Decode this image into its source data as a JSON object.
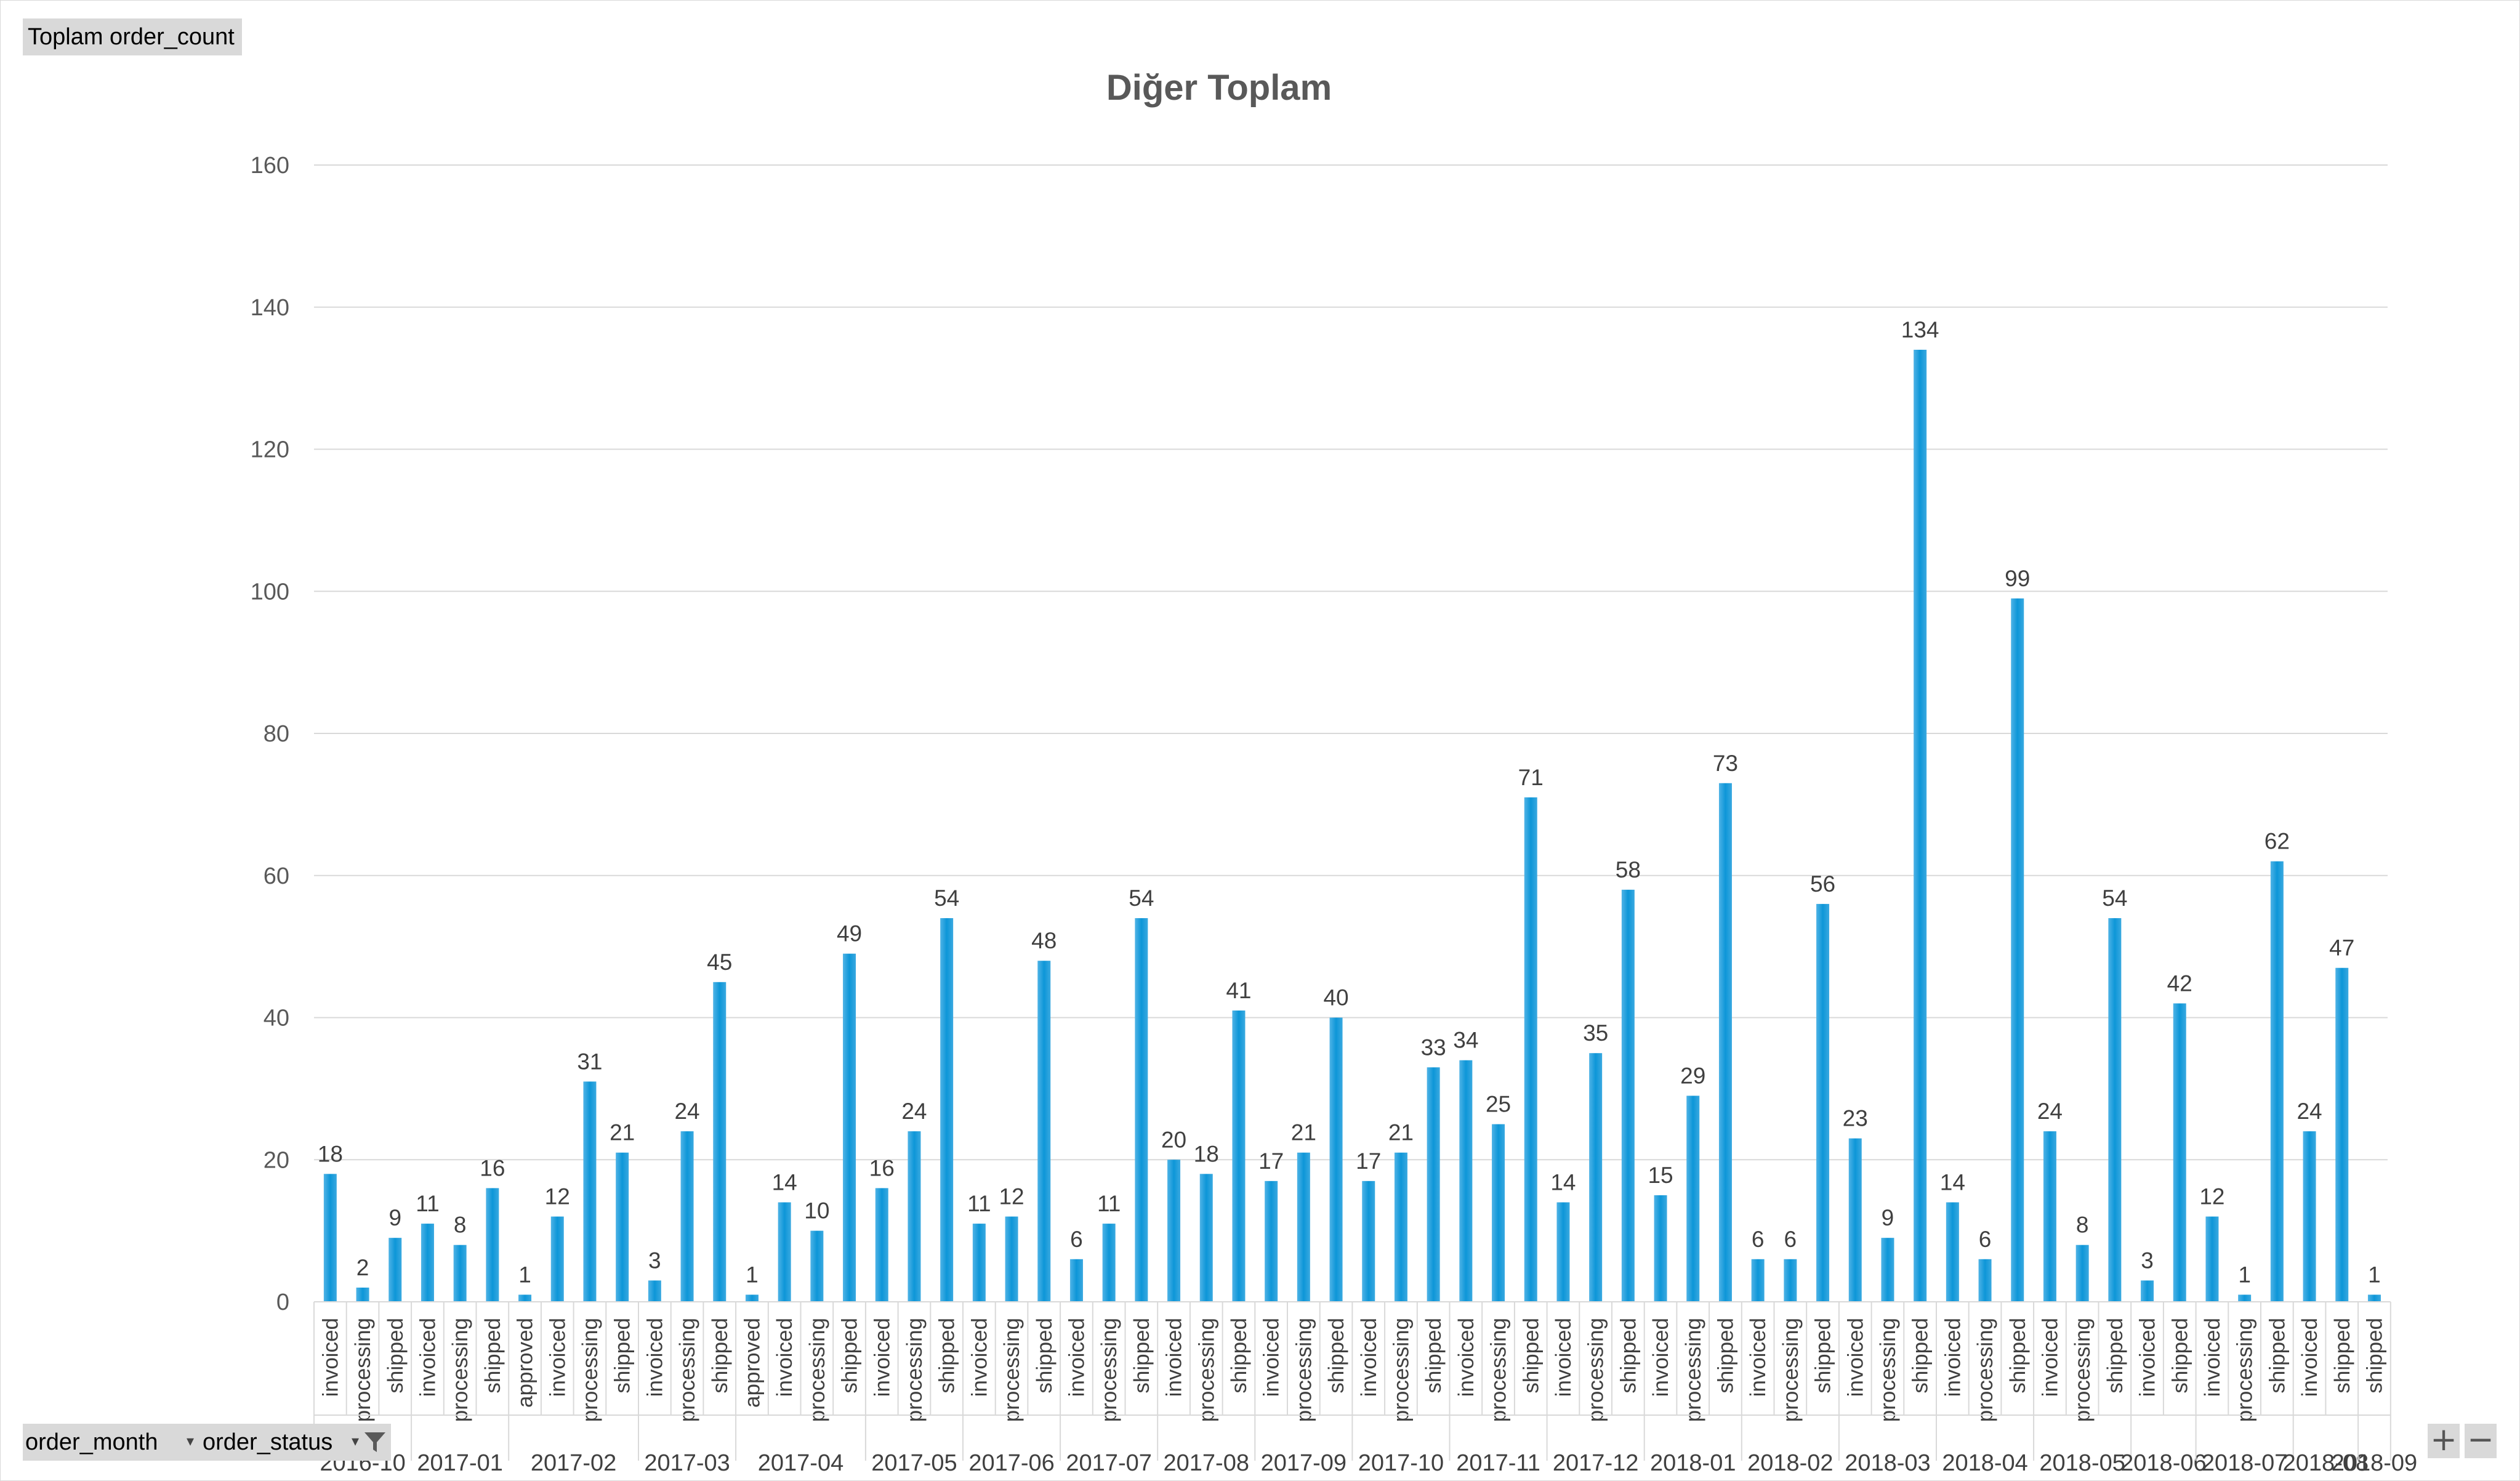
{
  "value_field": "Toplam order_count",
  "axis_fields": [
    "order_month",
    "order_status"
  ],
  "controls": {
    "zoom_in": "+",
    "zoom_out": "−",
    "filter_icon": "filter-icon",
    "dropdown_icon": "dropdown-icon"
  },
  "colors": {
    "bar": "#1b9ad6",
    "grid": "#d9d9d9",
    "field_button": "#d9d9d9"
  },
  "chart_data": {
    "type": "bar",
    "title": "Diğer Toplam",
    "ylim": [
      0,
      160
    ],
    "yticks": [
      0,
      20,
      40,
      60,
      80,
      100,
      120,
      140,
      160
    ],
    "grid": true,
    "legend": "none",
    "groups": [
      {
        "month": "2016-10",
        "items": [
          {
            "status": "invoiced",
            "value": 18
          },
          {
            "status": "processing",
            "value": 2
          },
          {
            "status": "shipped",
            "value": 9
          }
        ]
      },
      {
        "month": "2017-01",
        "items": [
          {
            "status": "invoiced",
            "value": 11
          },
          {
            "status": "processing",
            "value": 8
          },
          {
            "status": "shipped",
            "value": 16
          }
        ]
      },
      {
        "month": "2017-02",
        "items": [
          {
            "status": "approved",
            "value": 1
          },
          {
            "status": "invoiced",
            "value": 12
          },
          {
            "status": "processing",
            "value": 31
          },
          {
            "status": "shipped",
            "value": 21
          }
        ]
      },
      {
        "month": "2017-03",
        "items": [
          {
            "status": "invoiced",
            "value": 3
          },
          {
            "status": "processing",
            "value": 24
          },
          {
            "status": "shipped",
            "value": 45
          }
        ]
      },
      {
        "month": "2017-04",
        "items": [
          {
            "status": "approved",
            "value": 1
          },
          {
            "status": "invoiced",
            "value": 14
          },
          {
            "status": "processing",
            "value": 10
          },
          {
            "status": "shipped",
            "value": 49
          }
        ]
      },
      {
        "month": "2017-05",
        "items": [
          {
            "status": "invoiced",
            "value": 16
          },
          {
            "status": "processing",
            "value": 24
          },
          {
            "status": "shipped",
            "value": 54
          }
        ]
      },
      {
        "month": "2017-06",
        "items": [
          {
            "status": "invoiced",
            "value": 11
          },
          {
            "status": "processing",
            "value": 12
          },
          {
            "status": "shipped",
            "value": 48
          }
        ]
      },
      {
        "month": "2017-07",
        "items": [
          {
            "status": "invoiced",
            "value": 6
          },
          {
            "status": "processing",
            "value": 11
          },
          {
            "status": "shipped",
            "value": 54
          }
        ]
      },
      {
        "month": "2017-08",
        "items": [
          {
            "status": "invoiced",
            "value": 20
          },
          {
            "status": "processing",
            "value": 18
          },
          {
            "status": "shipped",
            "value": 41
          }
        ]
      },
      {
        "month": "2017-09",
        "items": [
          {
            "status": "invoiced",
            "value": 17
          },
          {
            "status": "processing",
            "value": 21
          },
          {
            "status": "shipped",
            "value": 40
          }
        ]
      },
      {
        "month": "2017-10",
        "items": [
          {
            "status": "invoiced",
            "value": 17
          },
          {
            "status": "processing",
            "value": 21
          },
          {
            "status": "shipped",
            "value": 33
          }
        ]
      },
      {
        "month": "2017-11",
        "items": [
          {
            "status": "invoiced",
            "value": 34
          },
          {
            "status": "processing",
            "value": 25
          },
          {
            "status": "shipped",
            "value": 71
          }
        ]
      },
      {
        "month": "2017-12",
        "items": [
          {
            "status": "invoiced",
            "value": 14
          },
          {
            "status": "processing",
            "value": 35
          },
          {
            "status": "shipped",
            "value": 58
          }
        ]
      },
      {
        "month": "2018-01",
        "items": [
          {
            "status": "invoiced",
            "value": 15
          },
          {
            "status": "processing",
            "value": 29
          },
          {
            "status": "shipped",
            "value": 73
          }
        ]
      },
      {
        "month": "2018-02",
        "items": [
          {
            "status": "invoiced",
            "value": 6
          },
          {
            "status": "processing",
            "value": 6
          },
          {
            "status": "shipped",
            "value": 56
          }
        ]
      },
      {
        "month": "2018-03",
        "items": [
          {
            "status": "invoiced",
            "value": 23
          },
          {
            "status": "processing",
            "value": 9
          },
          {
            "status": "shipped",
            "value": 134
          }
        ]
      },
      {
        "month": "2018-04",
        "items": [
          {
            "status": "invoiced",
            "value": 14
          },
          {
            "status": "processing",
            "value": 6
          },
          {
            "status": "shipped",
            "value": 99
          }
        ]
      },
      {
        "month": "2018-05",
        "items": [
          {
            "status": "invoiced",
            "value": 24
          },
          {
            "status": "processing",
            "value": 8
          },
          {
            "status": "shipped",
            "value": 54
          }
        ]
      },
      {
        "month": "2018-06",
        "items": [
          {
            "status": "invoiced",
            "value": 3
          },
          {
            "status": "shipped",
            "value": 42
          }
        ]
      },
      {
        "month": "2018-07",
        "items": [
          {
            "status": "invoiced",
            "value": 12
          },
          {
            "status": "processing",
            "value": 1
          },
          {
            "status": "shipped",
            "value": 62
          }
        ]
      },
      {
        "month": "2018-08",
        "items": [
          {
            "status": "invoiced",
            "value": 24
          },
          {
            "status": "shipped",
            "value": 47
          }
        ]
      },
      {
        "month": "2018-09",
        "items": [
          {
            "status": "shipped",
            "value": 1
          }
        ]
      }
    ]
  }
}
